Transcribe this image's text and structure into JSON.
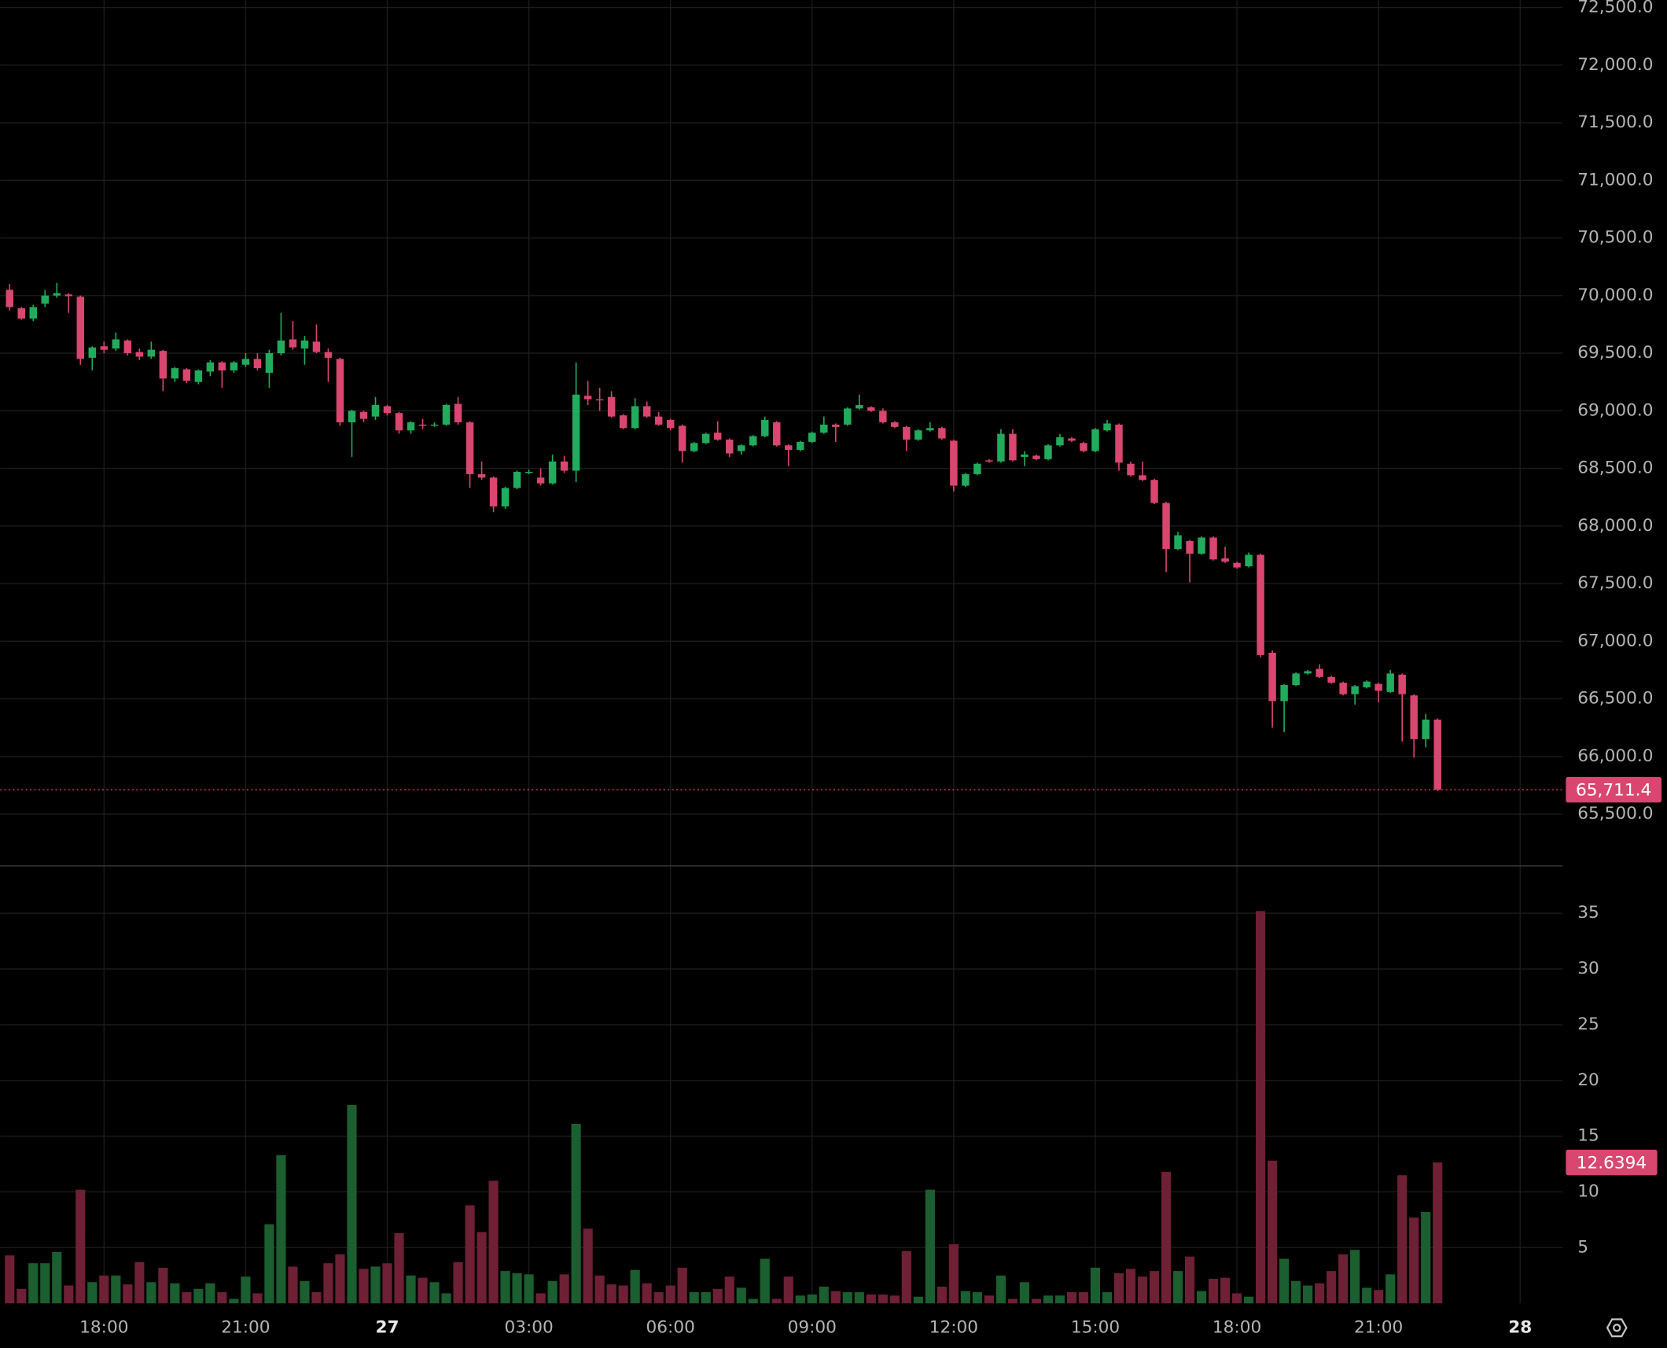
{
  "chart_data": [
    {
      "type": "candlestick",
      "x": [
        16,
        16.25,
        16.5,
        16.75,
        17,
        17.25,
        17.5,
        17.75,
        18,
        18.25,
        18.5,
        18.75,
        19,
        19.25,
        19.5,
        19.75,
        20,
        20.25,
        20.5,
        20.75,
        21,
        21.25,
        21.5,
        21.75,
        22,
        22.25,
        22.5,
        22.75,
        23,
        23.25,
        23.5,
        23.75,
        24,
        24.25,
        24.5,
        24.75,
        25,
        25.25,
        25.5,
        25.75,
        26,
        26.25,
        26.5,
        26.75,
        27,
        27.25,
        27.5,
        27.75,
        28,
        28.25,
        28.5,
        28.75,
        29,
        29.25,
        29.5,
        29.75,
        30,
        30.25,
        30.5,
        30.75,
        31,
        31.25,
        31.5,
        31.75,
        32,
        32.25,
        32.5,
        32.75,
        33,
        33.25,
        33.5,
        33.75,
        34,
        34.25,
        34.5,
        34.75,
        35,
        35.25,
        35.5,
        35.75,
        36,
        36.25,
        36.5,
        36.75,
        37,
        37.25,
        37.5,
        37.75,
        38,
        38.25,
        38.5,
        38.75,
        39,
        39.25,
        39.5,
        39.75,
        40,
        40.25,
        40.5,
        40.75,
        41,
        41.25,
        41.5,
        41.75,
        42,
        42.25,
        42.5,
        42.75,
        43,
        43.25,
        43.5,
        43.75,
        44,
        44.25,
        44.5,
        44.75,
        45,
        45.25,
        45.5,
        45.75,
        46,
        46.25
      ],
      "open": [
        70050,
        69890,
        69800,
        69930,
        70000,
        70010,
        69990,
        69460,
        69560,
        69540,
        69610,
        69510,
        69470,
        69520,
        69280,
        69360,
        69250,
        69340,
        69420,
        69350,
        69400,
        69450,
        69330,
        69500,
        69620,
        69540,
        69600,
        69510,
        69450,
        68900,
        68990,
        68950,
        69040,
        68980,
        68830,
        68880,
        68880,
        68880,
        69060,
        68900,
        68450,
        68420,
        68170,
        68330,
        68460,
        68420,
        68370,
        68560,
        68480,
        69130,
        69100,
        69120,
        68960,
        68850,
        69040,
        68950,
        68920,
        68870,
        68650,
        68720,
        68810,
        68750,
        68650,
        68700,
        68780,
        68900,
        68700,
        68660,
        68730,
        68810,
        68880,
        68880,
        69020,
        69030,
        69000,
        68900,
        68860,
        68750,
        68830,
        68850,
        68740,
        68350,
        68450,
        68570,
        68560,
        68800,
        68600,
        68610,
        68580,
        68700,
        68760,
        68720,
        68650,
        68830,
        68880,
        68540,
        68440,
        68400,
        68200,
        67800,
        67870,
        67760,
        67900,
        67720,
        67680,
        67650,
        67750,
        66900,
        66480,
        66620,
        66720,
        66760,
        66690,
        66640,
        66540,
        66600,
        66630,
        66560,
        66710,
        66530,
        66150,
        66320
      ],
      "high": [
        70100,
        69900,
        69920,
        70050,
        70110,
        70020,
        70000,
        69560,
        69600,
        69680,
        69620,
        69540,
        69600,
        69530,
        69380,
        69370,
        69360,
        69440,
        69430,
        69430,
        69500,
        69500,
        69530,
        69850,
        69780,
        69650,
        69750,
        69540,
        69460,
        69010,
        69000,
        69120,
        69050,
        68990,
        68910,
        68930,
        68900,
        69060,
        69120,
        68910,
        68560,
        68430,
        68340,
        68480,
        68490,
        68500,
        68620,
        68610,
        69420,
        69260,
        69200,
        69170,
        68970,
        69110,
        69080,
        68990,
        68930,
        68880,
        68730,
        68810,
        68910,
        68760,
        68710,
        68790,
        68950,
        68910,
        68710,
        68740,
        68820,
        68950,
        68890,
        69030,
        69140,
        69040,
        69020,
        68910,
        68870,
        68840,
        68900,
        68860,
        68750,
        68460,
        68550,
        68580,
        68840,
        68840,
        68650,
        68620,
        68710,
        68800,
        68770,
        68730,
        68850,
        68920,
        68890,
        68560,
        68560,
        68410,
        68210,
        67950,
        67880,
        67910,
        67910,
        67820,
        67690,
        67770,
        67760,
        66920,
        66630,
        66730,
        66750,
        66800,
        66700,
        66650,
        66620,
        66660,
        66640,
        66750,
        66720,
        66540,
        66370,
        66330
      ],
      "low": [
        69870,
        69790,
        69780,
        69900,
        69980,
        69850,
        69400,
        69350,
        69500,
        69520,
        69480,
        69440,
        69450,
        69170,
        69250,
        69240,
        69230,
        69300,
        69200,
        69330,
        69380,
        69350,
        69200,
        69480,
        69530,
        69400,
        69500,
        69250,
        68870,
        68600,
        68900,
        68920,
        68960,
        68800,
        68800,
        68840,
        68860,
        68870,
        68880,
        68330,
        68400,
        68120,
        68150,
        68320,
        68450,
        68350,
        68360,
        68460,
        68380,
        69050,
        69000,
        68940,
        68840,
        68840,
        68940,
        68870,
        68830,
        68550,
        68640,
        68710,
        68740,
        68600,
        68620,
        68690,
        68770,
        68690,
        68520,
        68650,
        68720,
        68800,
        68730,
        68870,
        69010,
        68990,
        68890,
        68850,
        68650,
        68740,
        68820,
        68750,
        68300,
        68340,
        68440,
        68550,
        68550,
        68560,
        68520,
        68570,
        68570,
        68690,
        68730,
        68640,
        68640,
        68820,
        68480,
        68430,
        68390,
        68190,
        67600,
        67790,
        67510,
        67750,
        67700,
        67680,
        67630,
        67640,
        66860,
        66250,
        66210,
        66610,
        66710,
        66680,
        66630,
        66530,
        66450,
        66590,
        66470,
        66550,
        66130,
        65990,
        66080,
        65700
      ],
      "close": [
        69900,
        69800,
        69900,
        70000,
        70020,
        69995,
        69450,
        69550,
        69530,
        69620,
        69500,
        69470,
        69530,
        69280,
        69370,
        69260,
        69350,
        69420,
        69350,
        69420,
        69450,
        69370,
        69500,
        69610,
        69550,
        69610,
        69510,
        69460,
        68900,
        69000,
        68930,
        69050,
        68980,
        68830,
        68900,
        68870,
        68880,
        69050,
        68900,
        68450,
        68420,
        68170,
        68330,
        68470,
        68470,
        68370,
        68560,
        68480,
        69140,
        69100,
        69090,
        68950,
        68850,
        69040,
        68950,
        68880,
        68850,
        68650,
        68720,
        68800,
        68750,
        68630,
        68700,
        68780,
        68920,
        68700,
        68660,
        68730,
        68810,
        68880,
        68860,
        69020,
        69050,
        69000,
        68900,
        68860,
        68750,
        68830,
        68850,
        68760,
        68350,
        68450,
        68540,
        68560,
        68800,
        68570,
        68620,
        68580,
        68700,
        68770,
        68740,
        68650,
        68840,
        68890,
        68550,
        68440,
        68400,
        68200,
        67800,
        67920,
        67760,
        67900,
        67710,
        67690,
        67640,
        67750,
        66880,
        66480,
        66620,
        66720,
        66740,
        66690,
        66640,
        66540,
        66610,
        66650,
        66570,
        66720,
        66540,
        66150,
        66320,
        65711.4
      ],
      "last_label": "65,711.4",
      "up_color": "#22ab5c",
      "down_color": "#d9466f",
      "xlim": [
        15.8,
        48.9
      ],
      "xticks": [
        {
          "value": 18,
          "label": "18:00"
        },
        {
          "value": 21,
          "label": "21:00"
        },
        {
          "value": 24,
          "label": "27"
        },
        {
          "value": 27,
          "label": "03:00"
        },
        {
          "value": 30,
          "label": "06:00"
        },
        {
          "value": 33,
          "label": "09:00"
        },
        {
          "value": 36,
          "label": "12:00"
        },
        {
          "value": 39,
          "label": "15:00"
        },
        {
          "value": 42,
          "label": "18:00"
        },
        {
          "value": 45,
          "label": "21:00"
        },
        {
          "value": 48,
          "label": "28"
        }
      ],
      "ylim": [
        65055,
        72565
      ],
      "yticks": [
        {
          "value": 65500,
          "label": "65,500.0"
        },
        {
          "value": 66000,
          "label": "66,000.0"
        },
        {
          "value": 66500,
          "label": "66,500.0"
        },
        {
          "value": 67000,
          "label": "67,000.0"
        },
        {
          "value": 67500,
          "label": "67,500.0"
        },
        {
          "value": 68000,
          "label": "68,000.0"
        },
        {
          "value": 68500,
          "label": "68,500.0"
        },
        {
          "value": 69000,
          "label": "69,000.0"
        },
        {
          "value": 69500,
          "label": "69,500.0"
        },
        {
          "value": 70000,
          "label": "70,000.0"
        },
        {
          "value": 70500,
          "label": "70,500.0"
        },
        {
          "value": 71000,
          "label": "71,000.0"
        },
        {
          "value": 71500,
          "label": "71,500.0"
        },
        {
          "value": 72000,
          "label": "72,000.0"
        },
        {
          "value": 72500,
          "label": "72,500.0"
        }
      ],
      "grid": true
    },
    {
      "type": "bar",
      "values": [
        4.3,
        1.3,
        3.6,
        3.6,
        4.6,
        1.6,
        10.2,
        1.9,
        2.5,
        2.5,
        1.7,
        3.7,
        1.9,
        3.2,
        1.8,
        1.0,
        1.3,
        1.8,
        1.0,
        0.4,
        2.4,
        0.9,
        7.1,
        13.3,
        3.3,
        2.0,
        1.0,
        3.6,
        4.4,
        17.8,
        3.1,
        3.3,
        3.6,
        6.3,
        2.5,
        2.3,
        1.9,
        0.9,
        3.7,
        8.8,
        6.4,
        11.0,
        2.9,
        2.7,
        2.6,
        0.9,
        2.0,
        2.6,
        16.1,
        6.7,
        2.5,
        1.7,
        1.6,
        3.0,
        1.8,
        1.0,
        1.6,
        3.2,
        1.0,
        1.0,
        1.3,
        2.4,
        1.4,
        0.4,
        4.0,
        0.4,
        2.4,
        0.7,
        0.8,
        1.5,
        1.1,
        1.0,
        1.0,
        0.8,
        0.8,
        0.7,
        4.7,
        0.6,
        10.2,
        1.5,
        5.3,
        1.1,
        1.0,
        0.7,
        2.5,
        0.4,
        1.9,
        0.4,
        0.7,
        0.7,
        1.0,
        1.0,
        3.2,
        1.0,
        2.7,
        3.1,
        2.4,
        2.9,
        11.8,
        2.9,
        4.2,
        1.1,
        2.2,
        2.3,
        0.9,
        0.6,
        35.2,
        12.8,
        4.0,
        2.0,
        1.6,
        1.8,
        2.9,
        4.4,
        4.8,
        1.4,
        1.2,
        2.6,
        11.5,
        7.7,
        8.2,
        12.6394
      ],
      "up_color": "#1b5e30",
      "down_color": "#6e2035",
      "ylim": [
        0,
        39.2
      ],
      "yticks": [
        5,
        10,
        15,
        20,
        25,
        30,
        35
      ],
      "grid": true
    }
  ]
}
